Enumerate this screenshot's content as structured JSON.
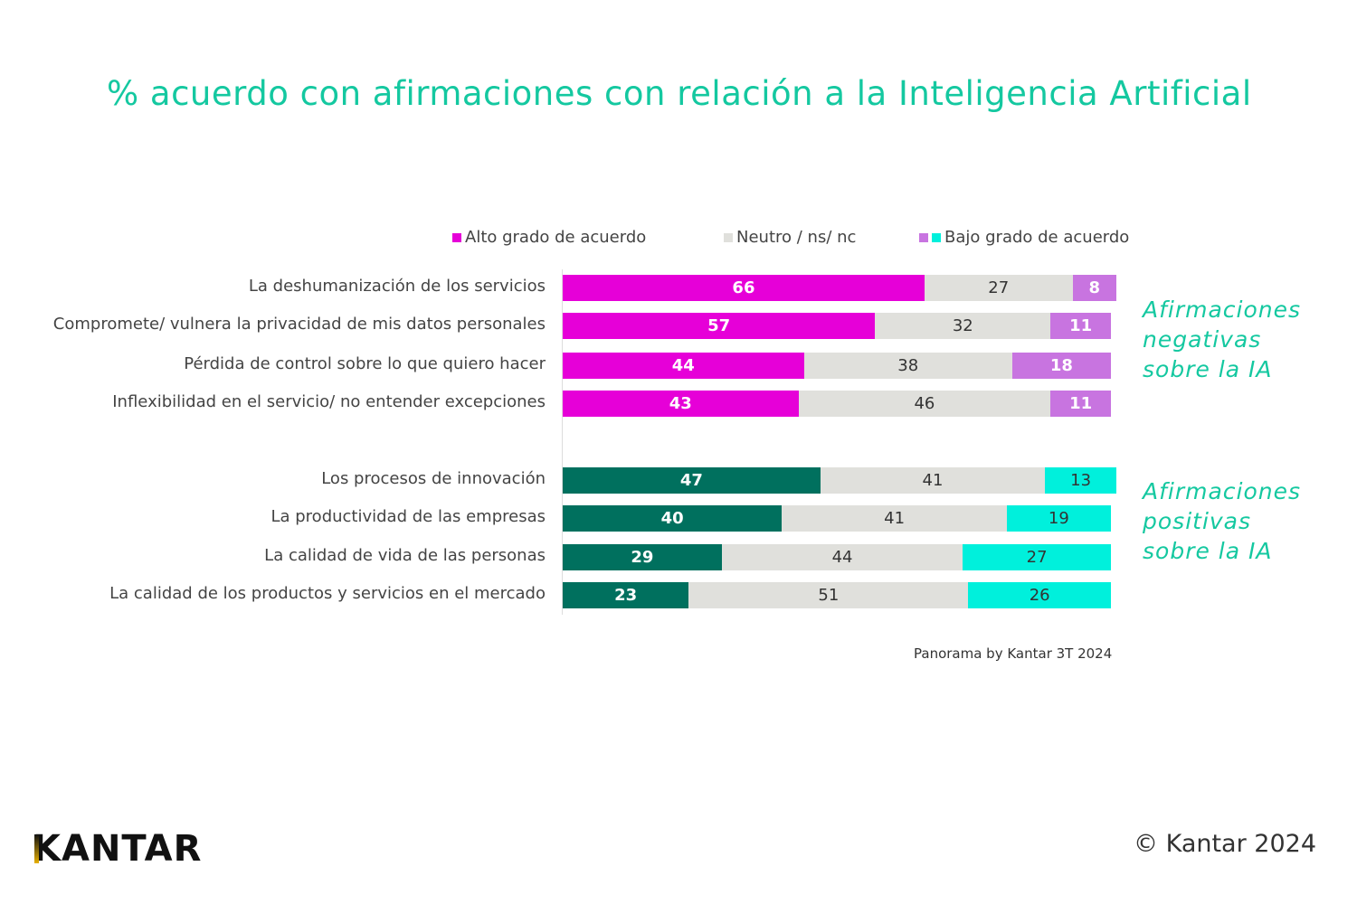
{
  "chart_data": {
    "type": "bar",
    "stacked": true,
    "orientation": "horizontal",
    "title": "% acuerdo con afirmaciones con relación a la Inteligencia Artificial",
    "legend": [
      {
        "name": "Alto grado de acuerdo",
        "colors": [
          "#e600d8"
        ]
      },
      {
        "name": "Neutro / ns/ nc",
        "colors": [
          "#e0e0dc"
        ]
      },
      {
        "name": "Bajo grado de acuerdo",
        "colors": [
          "#c874e0",
          "#00f0dc"
        ]
      }
    ],
    "legend_position": "top",
    "groups": [
      {
        "label": "Afirmaciones negativas sobre la IA",
        "colors": [
          "#e600d8",
          "#e0e0dc",
          "#c874e0"
        ],
        "categories": [
          "La deshumanización de los servicios",
          "Compromete/ vulnera la privacidad de mis datos personales",
          "Pérdida de control sobre lo que quiero hacer",
          "Inflexibilidad en el servicio/ no entender excepciones"
        ],
        "alto": [
          66,
          57,
          44,
          43
        ],
        "neutro": [
          27,
          32,
          38,
          46
        ],
        "bajo": [
          8,
          11,
          18,
          11
        ]
      },
      {
        "label": "Afirmaciones positivas sobre la IA",
        "colors": [
          "#00705e",
          "#e0e0dc",
          "#00f0dc"
        ],
        "categories": [
          "Los procesos de innovación",
          "La productividad de las empresas",
          "La calidad de vida de las personas",
          "La calidad de los productos y servicios en el mercado"
        ],
        "alto": [
          47,
          40,
          29,
          23
        ],
        "neutro": [
          41,
          41,
          44,
          51
        ],
        "bajo": [
          13,
          19,
          27,
          26
        ]
      }
    ],
    "xlim": [
      0,
      101
    ],
    "grid": false
  },
  "source": "Panorama by Kantar 3T 2024",
  "copyright": "© Kantar 2024",
  "logo_text": "KANTAR"
}
